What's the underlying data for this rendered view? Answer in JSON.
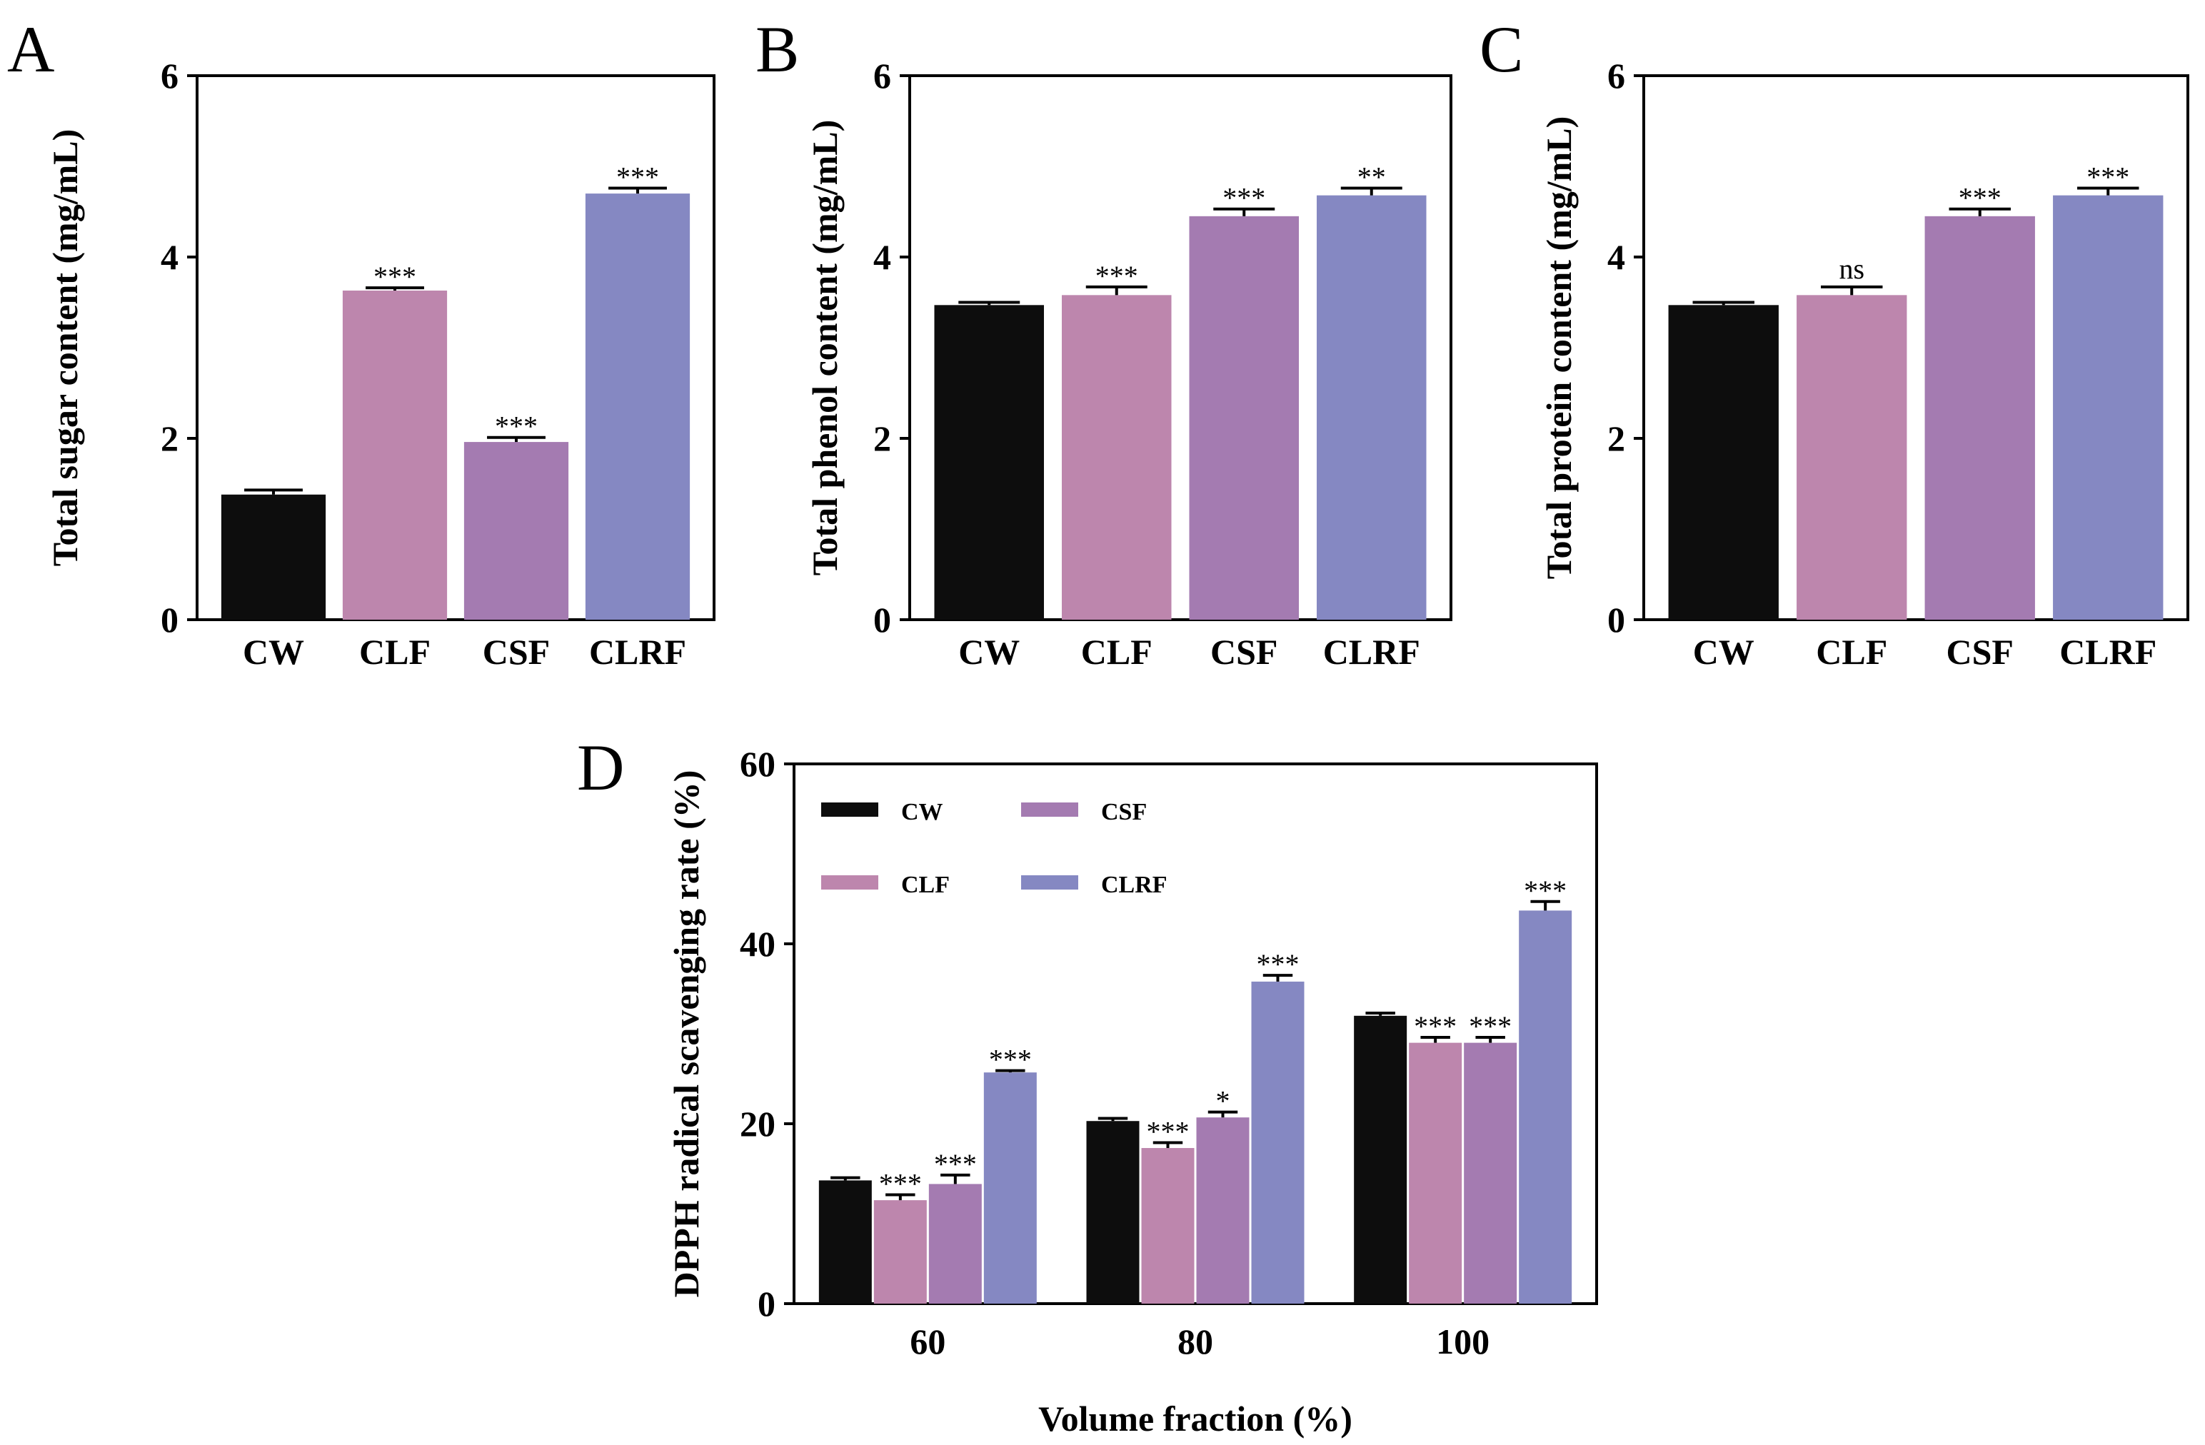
{
  "chart_data": [
    {
      "panel": "A",
      "type": "bar",
      "categories": [
        "CW",
        "CLF",
        "CSF",
        "CLRF"
      ],
      "values": [
        1.38,
        3.63,
        1.96,
        4.7
      ],
      "errors": [
        0.05,
        0.03,
        0.05,
        0.06
      ],
      "significance": [
        "",
        "***",
        "***",
        "***"
      ],
      "colors": [
        "#0d0d0d",
        "#bd86ad",
        "#a47bb1",
        "#8588c2"
      ],
      "ylabel": "Total sugar content (mg/mL)",
      "xlabel": "",
      "ylim": [
        0,
        6
      ],
      "yticks": [
        "0",
        "2",
        "4",
        "6"
      ]
    },
    {
      "panel": "B",
      "type": "bar",
      "categories": [
        "CW",
        "CLF",
        "CSF",
        "CLRF"
      ],
      "values": [
        3.47,
        3.58,
        4.45,
        4.68
      ],
      "errors": [
        0.03,
        0.09,
        0.08,
        0.08
      ],
      "significance": [
        "",
        "***",
        "***",
        "**"
      ],
      "colors": [
        "#0d0d0d",
        "#bd86ad",
        "#a47bb1",
        "#8588c2"
      ],
      "ylabel": "Total phenol content (mg/mL)",
      "xlabel": "",
      "ylim": [
        0,
        6
      ],
      "yticks": [
        "0",
        "2",
        "4",
        "6"
      ]
    },
    {
      "panel": "C",
      "type": "bar",
      "categories": [
        "CW",
        "CLF",
        "CSF",
        "CLRF"
      ],
      "values": [
        3.47,
        3.58,
        4.45,
        4.68
      ],
      "errors": [
        0.03,
        0.09,
        0.08,
        0.08
      ],
      "significance": [
        "",
        "ns",
        "***",
        "***"
      ],
      "colors": [
        "#0d0d0d",
        "#bd86ad",
        "#a47bb1",
        "#8588c2"
      ],
      "ylabel": "Total protein content (mg/mL)",
      "xlabel": "",
      "ylim": [
        0,
        6
      ],
      "yticks": [
        "0",
        "2",
        "4",
        "6"
      ]
    },
    {
      "panel": "D",
      "type": "bar",
      "categories": [
        "60",
        "80",
        "100"
      ],
      "series": [
        {
          "name": "CW",
          "color": "#0d0d0d",
          "values": [
            13.7,
            20.3,
            32.0
          ],
          "errors": [
            0.3,
            0.3,
            0.3
          ],
          "significance": [
            "",
            "",
            ""
          ]
        },
        {
          "name": "CLF",
          "color": "#bd86ad",
          "values": [
            11.5,
            17.3,
            29.0
          ],
          "errors": [
            0.6,
            0.6,
            0.6
          ],
          "significance": [
            "***",
            "***",
            "***"
          ]
        },
        {
          "name": "CSF",
          "color": "#a47bb1",
          "values": [
            13.3,
            20.7,
            29.0
          ],
          "errors": [
            1.0,
            0.6,
            0.6
          ],
          "significance": [
            "***",
            "*",
            "***"
          ]
        },
        {
          "name": "CLRF",
          "color": "#8588c2",
          "values": [
            25.7,
            35.8,
            43.7
          ],
          "errors": [
            0.2,
            0.7,
            1.0
          ],
          "significance": [
            "***",
            "***",
            "***"
          ]
        }
      ],
      "ylabel": "DPPH radical scavenging rate (%)",
      "xlabel": "Volume fraction (%)",
      "ylim": [
        0,
        60
      ],
      "yticks": [
        "0",
        "20",
        "40",
        "60"
      ],
      "legend": "top-left, two columns"
    }
  ]
}
